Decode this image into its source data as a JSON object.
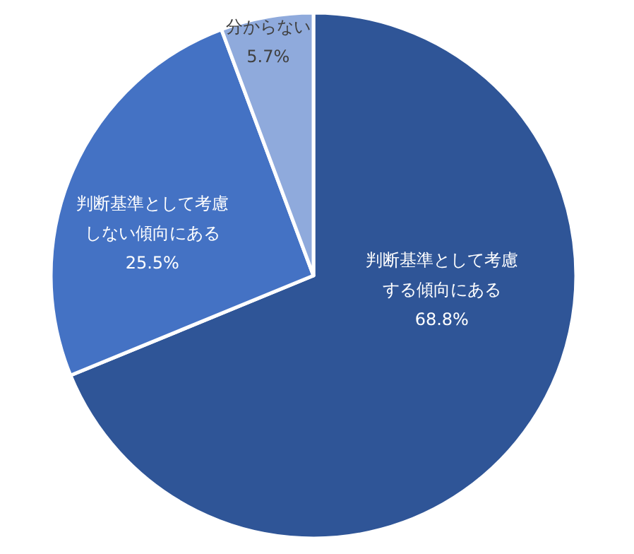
{
  "chart_data": {
    "type": "pie",
    "categories": [
      "判断基準として考慮する傾向にある",
      "判断基準として考慮しない傾向にある",
      "分からない"
    ],
    "values": [
      68.8,
      25.5,
      5.7
    ],
    "value_labels": [
      "68.8%",
      "25.5%",
      "5.7%"
    ],
    "colors": [
      "#2f5597",
      "#4472c4",
      "#8faadc"
    ],
    "legend": false
  }
}
